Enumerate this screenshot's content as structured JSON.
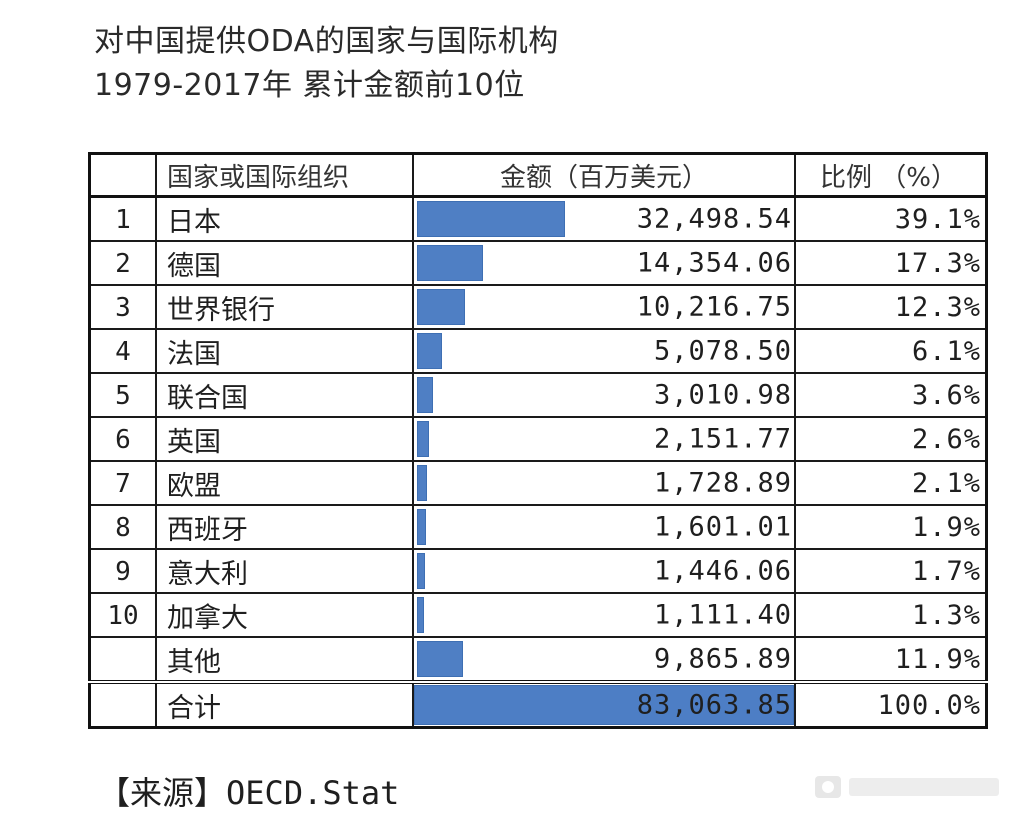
{
  "title": {
    "line1": "对中国提供ODA的国家与国际机构",
    "line2": "1979-2017年  累计金额前10位"
  },
  "table": {
    "headers": {
      "rank": "",
      "name": "国家或国际组织",
      "amount": "金额（百万美元）",
      "pct": "比例 （%）"
    },
    "rows": [
      {
        "rank": "1",
        "name": "日本",
        "amount": "32,498.54",
        "value": 32498.54,
        "pct": "39.1%"
      },
      {
        "rank": "2",
        "name": "德国",
        "amount": "14,354.06",
        "value": 14354.06,
        "pct": "17.3%"
      },
      {
        "rank": "3",
        "name": "世界银行",
        "amount": "10,216.75",
        "value": 10216.75,
        "pct": "12.3%"
      },
      {
        "rank": "4",
        "name": "法国",
        "amount": "5,078.50",
        "value": 5078.5,
        "pct": "6.1%"
      },
      {
        "rank": "5",
        "name": "联合国",
        "amount": "3,010.98",
        "value": 3010.98,
        "pct": "3.6%"
      },
      {
        "rank": "6",
        "name": "英国",
        "amount": "2,151.77",
        "value": 2151.77,
        "pct": "2.6%"
      },
      {
        "rank": "7",
        "name": "欧盟",
        "amount": "1,728.89",
        "value": 1728.89,
        "pct": "2.1%"
      },
      {
        "rank": "8",
        "name": "西班牙",
        "amount": "1,601.01",
        "value": 1601.01,
        "pct": "1.9%"
      },
      {
        "rank": "9",
        "name": "意大利",
        "amount": "1,446.06",
        "value": 1446.06,
        "pct": "1.7%"
      },
      {
        "rank": "10",
        "name": "加拿大",
        "amount": "1,111.40",
        "value": 1111.4,
        "pct": "1.3%"
      },
      {
        "rank": "",
        "name": "其他",
        "amount": "9,865.89",
        "value": 9865.89,
        "pct": "11.9%"
      }
    ],
    "total": {
      "name": "合计",
      "amount": "83,063.85",
      "value": 83063.85,
      "pct": "100.0%"
    },
    "bar_color": "#4f7fc4"
  },
  "source": {
    "label": "【来源】",
    "text": "OECD.Stat"
  }
}
